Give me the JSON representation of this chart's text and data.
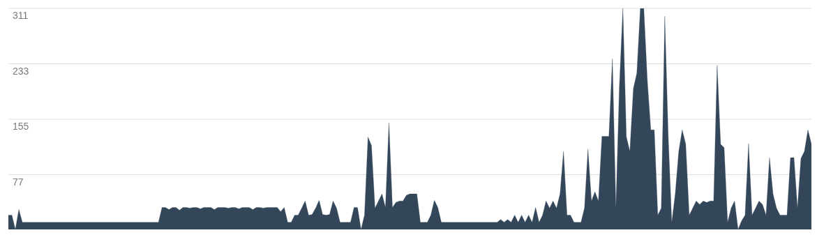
{
  "chart_data": {
    "type": "area",
    "color": "#34465a",
    "categories": [
      null,
      null,
      null,
      null,
      null,
      null,
      null,
      null,
      null,
      null,
      null,
      null,
      null,
      null,
      null,
      null,
      null,
      null,
      null,
      null,
      null,
      null,
      null,
      null,
      null,
      null,
      null,
      null,
      null,
      null,
      null,
      null,
      null,
      null,
      null,
      null,
      null,
      null,
      null,
      null,
      null,
      null,
      null,
      null,
      null,
      null,
      null,
      null,
      null,
      null,
      null,
      null,
      null,
      null,
      null,
      null,
      null,
      null,
      null,
      null,
      null,
      null,
      null,
      null,
      null,
      null,
      null,
      null,
      null,
      null,
      null,
      null,
      null,
      null,
      null,
      null,
      null,
      null,
      null,
      null,
      null,
      null,
      null,
      null,
      null,
      null,
      null,
      null,
      null,
      null,
      null,
      null,
      null,
      null,
      null,
      null,
      null,
      null,
      null,
      null,
      null,
      null,
      null,
      null,
      null,
      null,
      null,
      null,
      null,
      null,
      null,
      null,
      null,
      null,
      null,
      null,
      null,
      null,
      null,
      null,
      null,
      null,
      null,
      null,
      null,
      null,
      null,
      null,
      null,
      null,
      null,
      null,
      null,
      null,
      null,
      null,
      null,
      null,
      null,
      null,
      null,
      null,
      null,
      null,
      null,
      null,
      null,
      null,
      null,
      null,
      null,
      null,
      null,
      null,
      null,
      null,
      null,
      null,
      null,
      null,
      null,
      null,
      null,
      null,
      null,
      null,
      null,
      null,
      null,
      null,
      null,
      null,
      null,
      null,
      null,
      null,
      null,
      null,
      null,
      null,
      null,
      null,
      null,
      null,
      null,
      null,
      null,
      null,
      null,
      null,
      null,
      null,
      null,
      null,
      null,
      null,
      null,
      null,
      null,
      null,
      null,
      null,
      null,
      null,
      null,
      null,
      null,
      null,
      null,
      null,
      null,
      null,
      null,
      null,
      null,
      null,
      null,
      null,
      null,
      null,
      null,
      null,
      null,
      null,
      null,
      null,
      null,
      null,
      null,
      null,
      null
    ],
    "values": [
      20,
      20,
      0,
      28,
      10,
      10,
      10,
      10,
      10,
      10,
      10,
      10,
      10,
      10,
      10,
      10,
      10,
      10,
      10,
      10,
      10,
      10,
      10,
      10,
      10,
      10,
      10,
      10,
      10,
      10,
      10,
      10,
      10,
      10,
      10,
      10,
      10,
      10,
      10,
      10,
      10,
      10,
      10,
      10,
      31,
      31,
      28,
      31,
      31,
      27,
      31,
      31,
      30,
      31,
      31,
      29,
      31,
      31,
      31,
      28,
      31,
      31,
      31,
      30,
      31,
      31,
      29,
      31,
      31,
      31,
      28,
      31,
      31,
      30,
      31,
      31,
      31,
      31,
      25,
      31,
      10,
      10,
      20,
      20,
      30,
      40,
      20,
      21,
      30,
      41,
      21,
      20,
      21,
      40,
      30,
      10,
      10,
      10,
      10,
      31,
      31,
      0,
      20,
      130,
      118,
      30,
      40,
      50,
      31,
      150,
      31,
      38,
      40,
      40,
      48,
      50,
      50,
      50,
      10,
      10,
      10,
      20,
      41,
      31,
      10,
      10,
      10,
      10,
      10,
      10,
      10,
      10,
      10,
      10,
      10,
      10,
      10,
      10,
      10,
      10,
      10,
      14,
      10,
      14,
      10,
      20,
      10,
      20,
      10,
      20,
      10,
      31,
      10,
      20,
      40,
      30,
      40,
      30,
      50,
      110,
      20,
      20,
      10,
      10,
      10,
      30,
      113,
      40,
      53,
      40,
      131,
      131,
      131,
      240,
      30,
      201,
      311,
      130,
      110,
      198,
      220,
      311,
      311,
      210,
      140,
      140,
      20,
      30,
      300,
      130,
      10,
      50,
      110,
      140,
      120,
      20,
      30,
      40,
      35,
      40,
      38,
      40,
      40,
      231,
      120,
      115,
      10,
      30,
      40,
      0,
      12,
      20,
      121,
      20,
      30,
      40,
      35,
      20,
      101,
      50,
      30,
      20,
      20,
      20,
      101,
      101,
      30,
      100,
      110,
      140,
      120
    ],
    "ylim": [
      0,
      311
    ],
    "yticks": [
      77,
      155,
      233,
      311
    ],
    "grid": "y",
    "tick_labels": "y"
  }
}
